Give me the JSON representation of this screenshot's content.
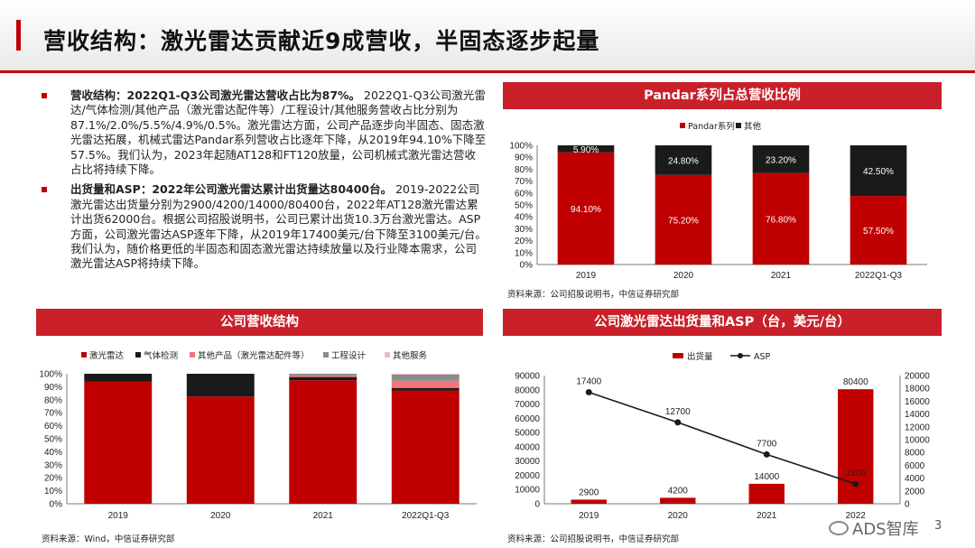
{
  "page": {
    "title": "营收结构：激光雷达贡献近9成营收，半固态逐步起量",
    "page_number": "3"
  },
  "bullets": [
    {
      "lead": "营收结构：2022Q1-Q3公司激光雷达营收占比为87%。",
      "text": "2022Q1-Q3公司激光雷达/气体检测/其他产品（激光雷达配件等）/工程设计/其他服务营收占比分别为87.1%/2.0%/5.5%/4.9%/0.5%。激光雷达方面，公司产品逐步向半固态、固态激光雷达拓展，机械式雷达Pandar系列营收占比逐年下降，从2019年94.10%下降至57.5%。我们认为，2023年起随AT128和FT120放量，公司机械式激光雷达营收占比将持续下降。"
    },
    {
      "lead": "出货量和ASP：2022年公司激光雷达累计出货量达80400台。",
      "text": "2019-2022公司激光雷达出货量分别为2900/4200/14000/80400台，2022年AT128激光雷达累计出货62000台。根据公司招股说明书，公司已累计出货10.3万台激光雷达。ASP方面，公司激光雷达ASP逐年下降，从2019年17400美元/台下降至3100美元/台。我们认为，随价格更低的半固态和固态激光雷达持续放量以及行业降本需求，公司激光雷达ASP将持续下降。"
    }
  ],
  "panels": {
    "revenue": {
      "title": "公司营收结构",
      "source": "资料来源：Wind，中信证券研究部"
    },
    "pandar": {
      "title": "Pandar系列占总营收比例",
      "source": "资料来源：公司招股说明书，中信证券研究部"
    },
    "shipment": {
      "title": "公司激光雷达出货量和ASP（台，美元/台）",
      "source": "资料来源：公司招股说明书，中信证券研究部"
    }
  },
  "watermark": "ADS智库",
  "colors": {
    "red": "#c00000",
    "header_red": "#c9202a",
    "black": "#1a1a1a",
    "gray": "#8c8c8c",
    "pink": "#f4737a",
    "light_pink": "#f6b8b8"
  },
  "chart_data": [
    {
      "id": "revenue",
      "type": "bar",
      "stacked": true,
      "categories": [
        "2019",
        "2020",
        "2021",
        "2022Q1-Q3"
      ],
      "series": [
        {
          "name": "激光雷达",
          "values": [
            94.1,
            82.5,
            95.0,
            87.1
          ]
        },
        {
          "name": "气体检测",
          "values": [
            5.9,
            17.5,
            2.5,
            2.0
          ]
        },
        {
          "name": "其他产品（激光雷达配件等）",
          "values": [
            0,
            0,
            1.0,
            5.5
          ]
        },
        {
          "name": "工程设计",
          "values": [
            0,
            0,
            1.5,
            4.9
          ]
        },
        {
          "name": "其他服务",
          "values": [
            0,
            0,
            0,
            0.5
          ]
        }
      ],
      "yticks": [
        "0%",
        "10%",
        "20%",
        "30%",
        "40%",
        "50%",
        "60%",
        "70%",
        "80%",
        "90%",
        "100%"
      ],
      "ylim": [
        0,
        100
      ]
    },
    {
      "id": "pandar",
      "type": "bar",
      "stacked": true,
      "categories": [
        "2019",
        "2020",
        "2021",
        "2022Q1-Q3"
      ],
      "series": [
        {
          "name": "Pandar系列",
          "values": [
            94.1,
            75.2,
            76.8,
            57.5
          ],
          "labels": [
            "94.10%",
            "75.20%",
            "76.80%",
            "57.50%"
          ]
        },
        {
          "name": "其他",
          "values": [
            5.9,
            24.8,
            23.2,
            42.5
          ],
          "labels": [
            "5.90%",
            "24.80%",
            "23.20%",
            "42.50%"
          ]
        }
      ],
      "yticks": [
        "0%",
        "10%",
        "20%",
        "30%",
        "40%",
        "50%",
        "60%",
        "70%",
        "80%",
        "90%",
        "100%"
      ],
      "ylim": [
        0,
        100
      ]
    },
    {
      "id": "shipment",
      "type": "bar+line",
      "categories": [
        "2019",
        "2020",
        "2021",
        "2022"
      ],
      "bar": {
        "name": "出货量",
        "values": [
          2900,
          4200,
          14000,
          80400
        ],
        "labels": [
          "2900",
          "4200",
          "14000",
          "80400"
        ]
      },
      "line": {
        "name": "ASP",
        "values": [
          17400,
          12700,
          7700,
          3100
        ],
        "labels": [
          "17400",
          "12700",
          "7700",
          "3100"
        ]
      },
      "yticks_left": [
        "0",
        "10000",
        "20000",
        "30000",
        "40000",
        "50000",
        "60000",
        "70000",
        "80000",
        "90000"
      ],
      "yticks_right": [
        "0",
        "2000",
        "4000",
        "6000",
        "8000",
        "10000",
        "12000",
        "14000",
        "16000",
        "18000",
        "20000"
      ],
      "ylim_left": [
        0,
        90000
      ],
      "ylim_right": [
        0,
        20000
      ]
    }
  ]
}
